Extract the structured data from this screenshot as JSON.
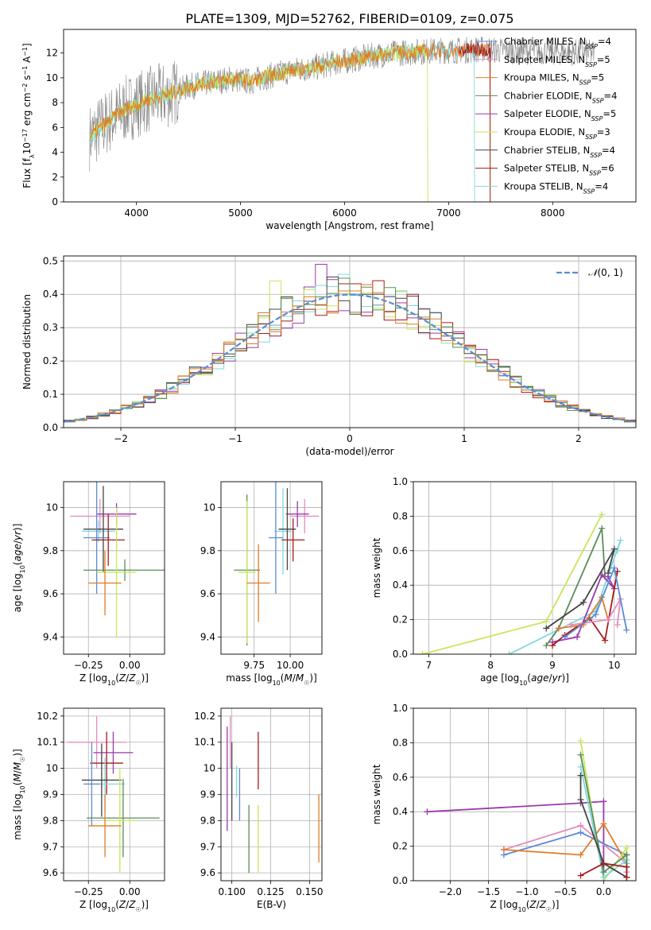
{
  "figure": {
    "title": "PLATE=1309, MJD=52762, FIBERID=0109, z=0.075"
  },
  "colors": [
    "#c8e65a",
    "#d4aa2a",
    "#5b8c5a",
    "#9b3aab",
    "#e48bc0",
    "#e07b26",
    "#5b8bd6",
    "#80d8e0",
    "#444444",
    "#a51a1a"
  ],
  "chart_data": [
    {
      "id": "spectrum",
      "type": "line",
      "xlabel": "wavelength [Angstrom, rest frame]",
      "ylabel": "Flux [f_λ10^-17 erg cm^-2 s^-1 A^-1]",
      "xlim": [
        3300,
        8800
      ],
      "ylim": [
        0,
        13.9
      ],
      "xticks": [
        4000,
        5000,
        6000,
        7000,
        8000
      ],
      "yticks": [
        0,
        2,
        4,
        6,
        8,
        10,
        12
      ],
      "grid": false,
      "legend_position": "top-right",
      "legend": [
        {
          "label": "Chabrier MILES, N",
          "sub": "SSP",
          "tail": "=4",
          "color": "#5b8bd6"
        },
        {
          "label": "Salpeter MILES, N",
          "sub": "SSP",
          "tail": "=5",
          "color": "#e48bc0"
        },
        {
          "label": "Kroupa MILES, N",
          "sub": "SSP",
          "tail": "=5",
          "color": "#e07b26"
        },
        {
          "label": "Chabrier ELODIE, N",
          "sub": "SSP",
          "tail": "=4",
          "color": "#5b8c5a"
        },
        {
          "label": "Salpeter ELODIE, N",
          "sub": "SSP",
          "tail": "=5",
          "color": "#9b3aab"
        },
        {
          "label": "Kroupa ELODIE, N",
          "sub": "SSP",
          "tail": "=3",
          "color": "#c8e65a"
        },
        {
          "label": "Chabrier STELIB, N",
          "sub": "SSP",
          "tail": "=4",
          "color": "#444444"
        },
        {
          "label": "Salpeter STELIB, N",
          "sub": "SSP",
          "tail": "=6",
          "color": "#a51a1a"
        },
        {
          "label": "Kroupa STELIB, N",
          "sub": "SSP",
          "tail": "=4",
          "color": "#80d8e0"
        }
      ],
      "series": [
        {
          "role": "data",
          "color": "#888888",
          "x_range": [
            3550,
            8400
          ],
          "continuum": [
            [
              3550,
              5.2
            ],
            [
              3700,
              6.3
            ],
            [
              3900,
              7.5
            ],
            [
              4100,
              8.2
            ],
            [
              4300,
              8.6
            ],
            [
              4500,
              9.3
            ],
            [
              4700,
              9.6
            ],
            [
              4900,
              9.9
            ],
            [
              5100,
              9.7
            ],
            [
              5300,
              10.2
            ],
            [
              5500,
              10.6
            ],
            [
              5700,
              10.8
            ],
            [
              5900,
              11.2
            ],
            [
              6100,
              11.5
            ],
            [
              6300,
              11.8
            ],
            [
              6500,
              12.0
            ],
            [
              6700,
              12.1
            ],
            [
              6900,
              12.2
            ],
            [
              7100,
              12.2
            ],
            [
              7300,
              12.3
            ],
            [
              7500,
              12.2
            ],
            [
              8400,
              12.0
            ]
          ]
        },
        {
          "role": "model",
          "color": "#80d8e0",
          "x_range": [
            3550,
            7250
          ]
        },
        {
          "role": "model",
          "color": "#c8e65a",
          "x_range": [
            3550,
            6800
          ]
        },
        {
          "role": "model",
          "color": "#e07b26",
          "x_range": [
            3550,
            7400
          ]
        },
        {
          "role": "model",
          "color": "#a51a1a",
          "x_range": [
            7100,
            7400
          ]
        }
      ]
    },
    {
      "id": "residuals",
      "type": "histogram",
      "xlabel": "(data-model)/error",
      "ylabel": "Normed distribution",
      "xlim": [
        -2.5,
        2.5
      ],
      "ylim": [
        0,
        0.515
      ],
      "xticks": [
        -2,
        -1,
        0,
        1,
        2
      ],
      "yticks": [
        0.0,
        0.1,
        0.2,
        0.3,
        0.4,
        0.5
      ],
      "grid": true,
      "legend_position": "top-right",
      "legend": [
        {
          "label": "N(0,1)",
          "color": "#5b8bd6"
        }
      ],
      "bin_width": 0.1,
      "series": [
        {
          "color": "#9b3aab",
          "peak": 0.49,
          "peak_x": -0.25
        },
        {
          "color": "#c8e65a",
          "peak": 0.44,
          "peak_x": -0.65
        },
        {
          "color": "#80d8e0",
          "peak": 0.46,
          "peak_x": -0.05
        },
        {
          "color": "#a51a1a",
          "peak": 0.4,
          "peak_x": 0.55
        },
        {
          "color": "#444444",
          "peak": 0.4,
          "peak_x": 0.2
        },
        {
          "color": "#5b8c5a",
          "peak": 0.42,
          "peak_x": 0.35
        },
        {
          "color": "#e07b26",
          "peak": 0.41,
          "peak_x": 0.0
        }
      ]
    },
    {
      "id": "age_vs_Z",
      "type": "scatter",
      "xlabel": "Z [log10(Z/Z☉)]",
      "ylabel": "age [log10(age/yr)]",
      "xlim": [
        -0.4,
        0.21
      ],
      "ylim": [
        9.32,
        10.12
      ],
      "xticks": [
        -0.25,
        0.0
      ],
      "xticklabels": [
        "−0.25",
        "0.00"
      ],
      "yticks": [
        9.4,
        9.6,
        9.8,
        10.0
      ],
      "grid": true,
      "points": [
        {
          "x": -0.18,
          "y": 9.96,
          "xerr": 0.18,
          "yerr": 0.08,
          "color": "#e48bc0"
        },
        {
          "x": -0.08,
          "y": 9.97,
          "xerr": 0.12,
          "yerr": 0.05,
          "color": "#9b3aab"
        },
        {
          "x": -0.19,
          "y": 9.89,
          "xerr": 0.1,
          "yerr": 0.05,
          "color": "#80d8e0"
        },
        {
          "x": -0.16,
          "y": 9.9,
          "xerr": 0.12,
          "yerr": 0.2,
          "color": "#444444"
        },
        {
          "x": -0.2,
          "y": 9.86,
          "xerr": 0.08,
          "yerr": 0.26,
          "color": "#5b8bd6"
        },
        {
          "x": -0.13,
          "y": 9.85,
          "xerr": 0.1,
          "yerr": 0.12,
          "color": "#a51a1a"
        },
        {
          "x": -0.03,
          "y": 9.71,
          "xerr": 0.25,
          "yerr": 0.05,
          "color": "#5b8c5a"
        },
        {
          "x": -0.08,
          "y": 9.7,
          "xerr": 0.12,
          "yerr": 0.3,
          "color": "#c8e65a"
        },
        {
          "x": -0.15,
          "y": 9.65,
          "xerr": 0.1,
          "yerr": 0.15,
          "color": "#e07b26"
        }
      ]
    },
    {
      "id": "age_vs_mass",
      "type": "scatter",
      "xlabel": "mass [log10(M/M☉)]",
      "ylabel": "",
      "xlim": [
        9.52,
        10.22
      ],
      "ylim": [
        9.32,
        10.12
      ],
      "xticks": [
        9.75,
        10.0
      ],
      "xticklabels": [
        "9.75",
        "10.00"
      ],
      "yticks": [
        9.4,
        9.6,
        9.8,
        10.0
      ],
      "grid": true,
      "points": [
        {
          "x": 10.1,
          "y": 9.96,
          "xerr": 0.1,
          "yerr": 0.08,
          "color": "#e48bc0"
        },
        {
          "x": 10.05,
          "y": 9.97,
          "xerr": 0.08,
          "yerr": 0.06,
          "color": "#9b3aab"
        },
        {
          "x": 9.95,
          "y": 9.89,
          "xerr": 0.06,
          "yerr": 0.2,
          "color": "#80d8e0"
        },
        {
          "x": 9.98,
          "y": 9.9,
          "xerr": 0.06,
          "yerr": 0.19,
          "color": "#444444"
        },
        {
          "x": 9.9,
          "y": 9.86,
          "xerr": 0.05,
          "yerr": 0.26,
          "color": "#5b8bd6"
        },
        {
          "x": 10.02,
          "y": 9.85,
          "xerr": 0.08,
          "yerr": 0.1,
          "color": "#a51a1a"
        },
        {
          "x": 9.7,
          "y": 9.71,
          "xerr": 0.09,
          "yerr": 0.35,
          "color": "#5b8c5a"
        },
        {
          "x": 9.7,
          "y": 9.7,
          "xerr": 0.06,
          "yerr": 0.33,
          "color": "#c8e65a"
        },
        {
          "x": 9.78,
          "y": 9.65,
          "xerr": 0.08,
          "yerr": 0.18,
          "color": "#e07b26"
        }
      ]
    },
    {
      "id": "weight_vs_age",
      "type": "line",
      "xlabel": "age [log10(age/yr)]",
      "ylabel": "mass weight",
      "xlim": [
        6.75,
        10.35
      ],
      "ylim": [
        0,
        1.0
      ],
      "xticks": [
        7,
        8,
        9,
        10
      ],
      "yticks": [
        0.0,
        0.2,
        0.4,
        0.6,
        0.8,
        1.0
      ],
      "grid": true,
      "series": [
        {
          "color": "#c8e65a",
          "x": [
            6.9,
            8.9,
            9.8
          ],
          "y": [
            0.0,
            0.19,
            0.81
          ]
        },
        {
          "color": "#80d8e0",
          "x": [
            8.3,
            9.7,
            10.1,
            10.05
          ],
          "y": [
            0.0,
            0.25,
            0.66,
            0.6
          ]
        },
        {
          "color": "#5b8c5a",
          "x": [
            8.9,
            9.1,
            9.8,
            9.85
          ],
          "y": [
            0.05,
            0.15,
            0.73,
            0.45
          ]
        },
        {
          "color": "#444444",
          "x": [
            8.9,
            9.5,
            10.0,
            9.9
          ],
          "y": [
            0.15,
            0.3,
            0.61,
            0.47
          ]
        },
        {
          "color": "#9b3aab",
          "x": [
            9.0,
            9.4,
            9.8,
            10.0,
            9.9
          ],
          "y": [
            0.07,
            0.1,
            0.46,
            0.38,
            0.45
          ]
        },
        {
          "color": "#a51a1a",
          "x": [
            9.0,
            9.2,
            9.6,
            9.85,
            10.05
          ],
          "y": [
            0.05,
            0.11,
            0.21,
            0.08,
            0.48
          ]
        },
        {
          "color": "#e07b26",
          "x": [
            9.1,
            9.5,
            9.8,
            9.9
          ],
          "y": [
            0.15,
            0.17,
            0.33,
            0.2
          ]
        },
        {
          "color": "#e48bc0",
          "x": [
            9.3,
            9.9,
            10.1,
            10.05
          ],
          "y": [
            0.17,
            0.2,
            0.32,
            0.17
          ]
        },
        {
          "color": "#5b8bd6",
          "x": [
            9.2,
            9.7,
            10.0,
            10.2
          ],
          "y": [
            0.1,
            0.23,
            0.5,
            0.14
          ]
        }
      ]
    },
    {
      "id": "mass_vs_Z",
      "type": "scatter",
      "xlabel": "Z [log10(Z/Z☉)]",
      "ylabel": "mass [log10(M/M☉)]",
      "xlim": [
        -0.4,
        0.21
      ],
      "ylim": [
        9.57,
        10.23
      ],
      "xticks": [
        -0.25,
        0.0
      ],
      "xticklabels": [
        "−0.25",
        "0.00"
      ],
      "yticks": [
        9.6,
        9.7,
        9.8,
        9.9,
        10.0,
        10.1,
        10.2
      ],
      "grid": true,
      "points": [
        {
          "x": -0.2,
          "y": 10.1,
          "xerr": 0.18,
          "yerr": 0.1,
          "color": "#e48bc0"
        },
        {
          "x": -0.1,
          "y": 10.06,
          "xerr": 0.12,
          "yerr": 0.08,
          "color": "#9b3aab"
        },
        {
          "x": -0.14,
          "y": 10.02,
          "xerr": 0.1,
          "yerr": 0.12,
          "color": "#a51a1a"
        },
        {
          "x": -0.15,
          "y": 9.94,
          "xerr": 0.12,
          "yerr": 0.1,
          "color": "#80d8e0"
        },
        {
          "x": -0.17,
          "y": 9.955,
          "xerr": 0.12,
          "yerr": 0.14,
          "color": "#444444"
        },
        {
          "x": -0.23,
          "y": 9.94,
          "xerr": 0.05,
          "yerr": 0.16,
          "color": "#5b8bd6"
        },
        {
          "x": -0.04,
          "y": 9.81,
          "xerr": 0.22,
          "yerr": 0.15,
          "color": "#5b8c5a"
        },
        {
          "x": -0.06,
          "y": 9.8,
          "xerr": 0.1,
          "yerr": 0.2,
          "color": "#c8e65a"
        },
        {
          "x": -0.15,
          "y": 9.78,
          "xerr": 0.1,
          "yerr": 0.12,
          "color": "#e07b26"
        }
      ]
    },
    {
      "id": "mass_vs_ebv",
      "type": "scatter",
      "xlabel": "E(B-V)",
      "ylabel": "",
      "xlim": [
        0.093,
        0.158
      ],
      "ylim": [
        9.57,
        10.23
      ],
      "xticks": [
        0.1,
        0.125,
        0.15
      ],
      "xticklabels": [
        "0.100",
        "0.125",
        "0.150"
      ],
      "yticks": [
        9.6,
        9.7,
        9.8,
        9.9,
        10.0,
        10.1,
        10.2
      ],
      "grid": true,
      "points": [
        {
          "x": 0.099,
          "y": 10.1,
          "xerr": 0,
          "yerr": 0.1,
          "color": "#e48bc0"
        },
        {
          "x": 0.097,
          "y": 9.96,
          "xerr": 0,
          "yerr": 0.2,
          "color": "#9b3aab"
        },
        {
          "x": 0.1,
          "y": 9.95,
          "xerr": 0,
          "yerr": 0.15,
          "color": "#444444"
        },
        {
          "x": 0.103,
          "y": 9.95,
          "xerr": 0,
          "yerr": 0.06,
          "color": "#80d8e0"
        },
        {
          "x": 0.105,
          "y": 9.9,
          "xerr": 0,
          "yerr": 0.1,
          "color": "#5b8bd6"
        },
        {
          "x": 0.111,
          "y": 9.73,
          "xerr": 0,
          "yerr": 0.13,
          "color": "#5b8c5a"
        },
        {
          "x": 0.117,
          "y": 9.73,
          "xerr": 0,
          "yerr": 0.13,
          "color": "#c8e65a"
        },
        {
          "x": 0.117,
          "y": 10.03,
          "xerr": 0,
          "yerr": 0.11,
          "color": "#a51a1a"
        },
        {
          "x": 0.156,
          "y": 9.77,
          "xerr": 0,
          "yerr": 0.13,
          "color": "#e07b26"
        }
      ]
    },
    {
      "id": "weight_vs_Z",
      "type": "line",
      "xlabel": "Z [log10(Z/Z☉)]",
      "ylabel": "mass weight",
      "xlim": [
        -2.48,
        0.42
      ],
      "ylim": [
        0,
        1.0
      ],
      "xticks": [
        -2.0,
        -1.5,
        -1.0,
        -0.5,
        0.0
      ],
      "xticklabels": [
        "−2.0",
        "−1.5",
        "−1.0",
        "−0.5",
        "0.0"
      ],
      "yticks": [
        0.0,
        0.2,
        0.4,
        0.6,
        0.8,
        1.0
      ],
      "grid": true,
      "series": [
        {
          "color": "#9b3aab",
          "x": [
            -2.3,
            -0.3,
            0.0,
            0.0
          ],
          "y": [
            0.4,
            0.45,
            0.46,
            0.05
          ]
        },
        {
          "color": "#e48bc0",
          "x": [
            -1.3,
            -0.3,
            0.3,
            0.3
          ],
          "y": [
            0.18,
            0.32,
            0.1,
            0.05
          ]
        },
        {
          "color": "#5b8bd6",
          "x": [
            -1.3,
            -0.3,
            0.3,
            0.3
          ],
          "y": [
            0.15,
            0.28,
            0.15,
            0.02
          ]
        },
        {
          "color": "#e07b26",
          "x": [
            -1.3,
            -0.3,
            0.0,
            0.3
          ],
          "y": [
            0.18,
            0.15,
            0.33,
            0.1
          ]
        },
        {
          "color": "#c8e65a",
          "x": [
            -0.3,
            0.0,
            0.3,
            0.3
          ],
          "y": [
            0.81,
            0.0,
            0.19,
            0.0
          ]
        },
        {
          "color": "#80d8e0",
          "x": [
            -0.3,
            0.0,
            0.3,
            0.3
          ],
          "y": [
            0.66,
            0.02,
            0.12,
            0.1
          ]
        },
        {
          "color": "#5b8c5a",
          "x": [
            -0.3,
            0.0,
            0.3,
            0.3
          ],
          "y": [
            0.73,
            0.05,
            0.15,
            0.08
          ]
        },
        {
          "color": "#444444",
          "x": [
            -0.3,
            -0.3,
            0.0,
            0.3
          ],
          "y": [
            0.61,
            0.47,
            0.1,
            0.02
          ]
        },
        {
          "color": "#a51a1a",
          "x": [
            -0.3,
            0.0,
            0.3,
            0.3
          ],
          "y": [
            0.03,
            0.1,
            0.08,
            0.02
          ]
        }
      ]
    }
  ]
}
